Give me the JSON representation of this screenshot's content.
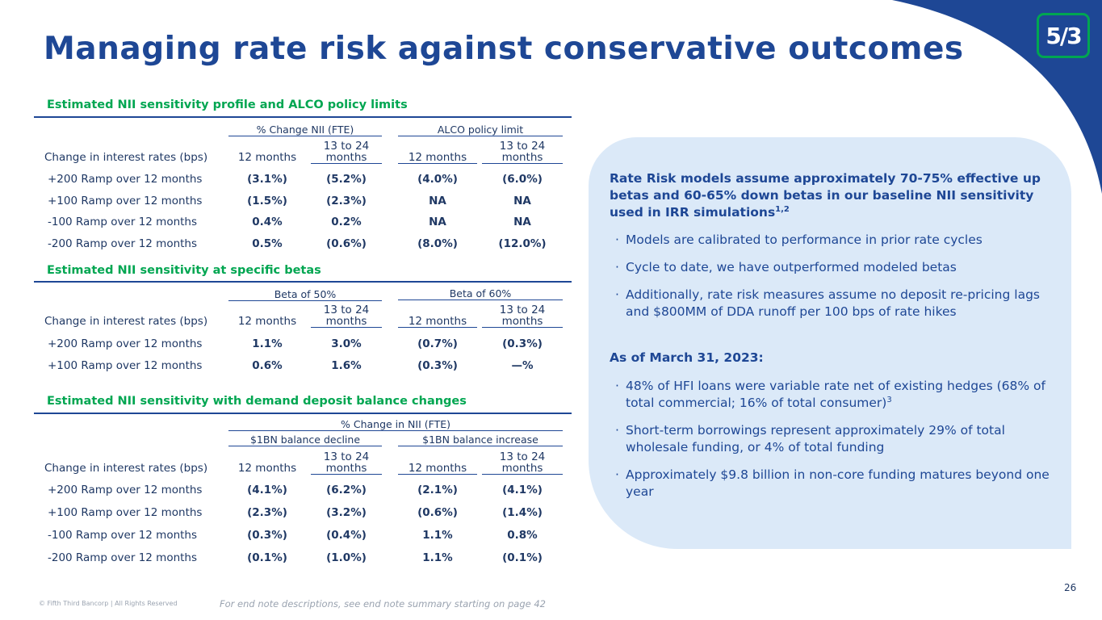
{
  "logo_text": "5/3",
  "title": "Managing rate risk against conservative outcomes",
  "row_label_header": "Change in interest rates (bps)",
  "col_12": "12 months",
  "col_13_24": "13 to 24 months",
  "table1": {
    "section_title": "Estimated NII sensitivity profile and ALCO policy limits",
    "group1": "% Change NII (FTE)",
    "group2": "ALCO policy limit",
    "rows": [
      {
        "label": "+200 Ramp over 12 months",
        "v": [
          "(3.1%)",
          "(5.2%)",
          "(4.0%)",
          "(6.0%)"
        ]
      },
      {
        "label": "+100 Ramp over 12 months",
        "v": [
          "(1.5%)",
          "(2.3%)",
          "NA",
          "NA"
        ]
      },
      {
        "label": "-100 Ramp over 12 months",
        "v": [
          "0.4%",
          "0.2%",
          "NA",
          "NA"
        ]
      },
      {
        "label": "-200 Ramp over 12 months",
        "v": [
          "0.5%",
          "(0.6%)",
          "(8.0%)",
          "(12.0%)"
        ]
      }
    ]
  },
  "table2": {
    "section_title": "Estimated NII sensitivity at specific betas",
    "group1": "Beta of 50%",
    "group2": "Beta of 60%",
    "rows": [
      {
        "label": "+200 Ramp over 12 months",
        "v": [
          "1.1%",
          "3.0%",
          "(0.7%)",
          "(0.3%)"
        ]
      },
      {
        "label": "+100 Ramp over 12 months",
        "v": [
          "0.6%",
          "1.6%",
          "(0.3%)",
          "—%"
        ]
      }
    ]
  },
  "table3": {
    "section_title": "Estimated NII sensitivity with demand deposit balance changes",
    "supergroup": "% Change in NII (FTE)",
    "group1": "$1BN balance decline",
    "group2": "$1BN balance increase",
    "rows": [
      {
        "label": "+200 Ramp over 12 months",
        "v": [
          "(4.1%)",
          "(6.2%)",
          "(2.1%)",
          "(4.1%)"
        ]
      },
      {
        "label": "+100 Ramp over 12 months",
        "v": [
          "(2.3%)",
          "(3.2%)",
          "(0.6%)",
          "(1.4%)"
        ]
      },
      {
        "label": "-100 Ramp over 12 months",
        "v": [
          "(0.3%)",
          "(0.4%)",
          "1.1%",
          "0.8%"
        ]
      },
      {
        "label": "-200 Ramp over 12 months",
        "v": [
          "(0.1%)",
          "(1.0%)",
          "1.1%",
          "(0.1%)"
        ]
      }
    ]
  },
  "panel": {
    "heading1": "Rate Risk models assume approximately 70-75% effective up betas and 60-65% down betas in our baseline NII sensitivity used in IRR simulations",
    "heading1_sup": "1,2",
    "bullets1": [
      {
        "text": "Models are calibrated to performance in prior rate cycles",
        "sup": ""
      },
      {
        "text": "Cycle to date, we have outperformed modeled betas",
        "sup": ""
      },
      {
        "text": "Additionally, rate risk measures assume no deposit re-pricing lags and $800MM of DDA runoff per 100 bps of rate hikes",
        "sup": ""
      }
    ],
    "heading2": "As of March 31, 2023:",
    "bullets2": [
      {
        "text": "48% of HFI loans were variable rate net of existing hedges (68% of total commercial; 16% of total consumer)",
        "sup": "3"
      },
      {
        "text": "Short-term borrowings represent approximately 29% of total wholesale funding, or 4% of total funding",
        "sup": ""
      },
      {
        "text": "Approximately $9.8 billion in non-core funding matures beyond one year",
        "sup": ""
      }
    ],
    "bullet_char": "·"
  },
  "footer": {
    "copyright": "© Fifth Third Bancorp | All Rights Reserved",
    "note": "For end note descriptions, see end note summary starting on page 42",
    "page_number": "26"
  },
  "colors": {
    "brand_blue": "#1e4795",
    "brand_green": "#00a651",
    "panel_bg": "#dbe9f8"
  }
}
